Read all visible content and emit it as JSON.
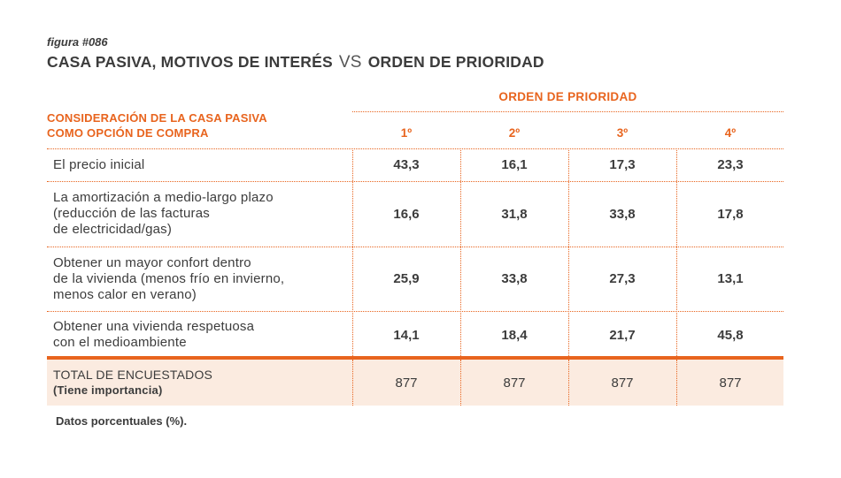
{
  "figure": {
    "label": "figura #086",
    "title_part1": "CASA PASIVA, MOTIVOS DE INTERÉS",
    "title_vs": "VS",
    "title_part2": "ORDEN DE PRIORIDAD"
  },
  "colors": {
    "accent": "#e8641e",
    "text": "#3c3c3c",
    "total_background": "#fbebe0"
  },
  "chart_data": {
    "type": "table",
    "title": "CASA PASIVA, MOTIVOS DE INTERÉS VS ORDEN DE PRIORIDAD",
    "group_header": "ORDEN DE PRIORIDAD",
    "row_header": {
      "line1": "CONSIDERACIÓN DE LA CASA PASIVA",
      "line2": "COMO OPCIÓN DE COMPRA"
    },
    "columns": [
      "1º",
      "2º",
      "3º",
      "4º"
    ],
    "rows": [
      {
        "label_lines": [
          "El precio inicial"
        ],
        "values": [
          "43,3",
          "16,1",
          "17,3",
          "23,3"
        ]
      },
      {
        "label_lines": [
          "La amortización a medio-largo plazo",
          "(reducción de las facturas",
          "de electricidad/gas)"
        ],
        "values": [
          "16,6",
          "31,8",
          "33,8",
          "17,8"
        ]
      },
      {
        "label_lines": [
          "Obtener un mayor confort dentro",
          "de la vivienda (menos frío en invierno,",
          "menos calor en verano)"
        ],
        "values": [
          "25,9",
          "33,8",
          "27,3",
          "13,1"
        ]
      },
      {
        "label_lines": [
          "Obtener una vivienda respetuosa",
          "con el medioambiente"
        ],
        "values": [
          "14,1",
          "18,4",
          "21,7",
          "45,8"
        ]
      }
    ],
    "total": {
      "label": "TOTAL DE ENCUESTADOS",
      "sublabel": "(Tiene importancia)",
      "values": [
        "877",
        "877",
        "877",
        "877"
      ]
    },
    "footnote": "Datos porcentuales (%)."
  }
}
